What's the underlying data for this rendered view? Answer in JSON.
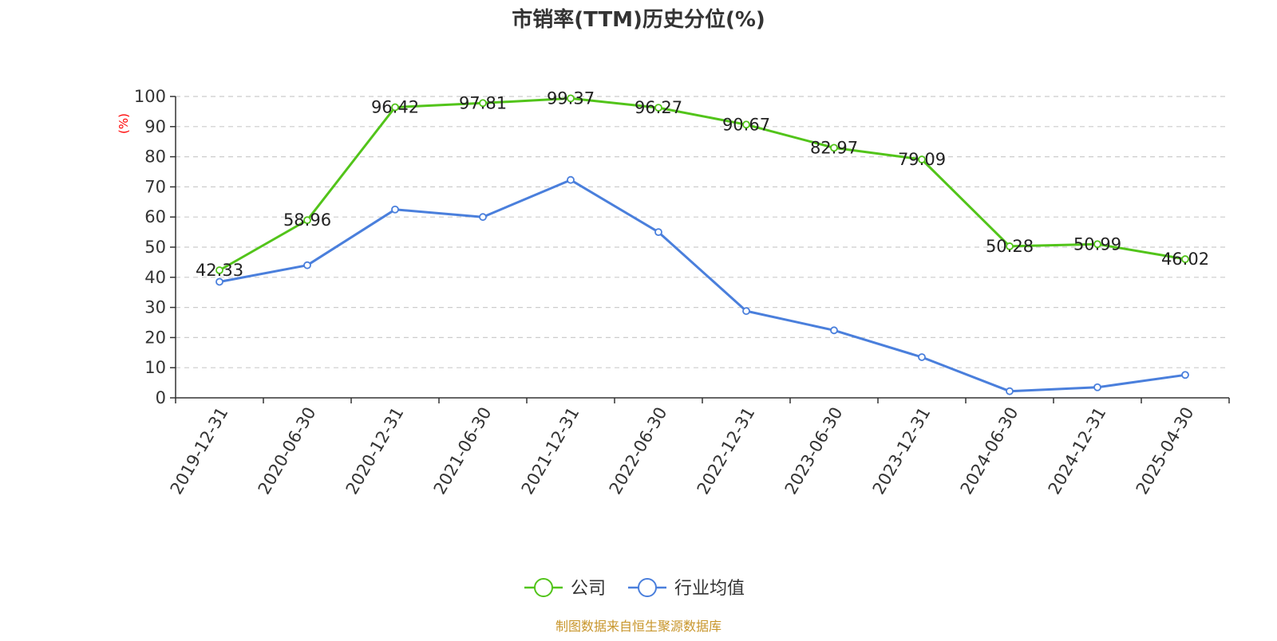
{
  "chart_data": {
    "type": "line",
    "title": "市销率(TTM)历史分位(%)",
    "ylabel": "(%)",
    "xlabel": "",
    "categories": [
      "2019-12-31",
      "2020-06-30",
      "2020-12-31",
      "2021-06-30",
      "2021-12-31",
      "2022-06-30",
      "2022-12-31",
      "2023-06-30",
      "2023-12-31",
      "2024-06-30",
      "2024-12-31",
      "2025-04-30"
    ],
    "yticks": [
      0,
      10,
      20,
      30,
      40,
      50,
      60,
      70,
      80,
      90,
      100
    ],
    "ylim": [
      0,
      100
    ],
    "grid": true,
    "legend_position": "bottom",
    "series": [
      {
        "name": "公司",
        "color": "#52c41a",
        "show_labels": true,
        "values": [
          42.33,
          58.96,
          96.42,
          97.81,
          99.37,
          96.27,
          90.67,
          82.97,
          79.09,
          50.28,
          50.99,
          46.02
        ],
        "labels": [
          "42.33",
          "58.96",
          "96.42",
          "97.81",
          "99.37",
          "96.27",
          "90.67",
          "82.97",
          "79.09",
          "50.28",
          "50.99",
          "46.02"
        ]
      },
      {
        "name": "行业均值",
        "color": "#4a7fdc",
        "show_labels": false,
        "values": [
          38.5,
          44.0,
          62.5,
          60.0,
          72.3,
          55.0,
          28.8,
          22.4,
          13.5,
          2.2,
          3.5,
          7.6
        ]
      }
    ]
  },
  "source_text": "制图数据来自恒生聚源数据库"
}
